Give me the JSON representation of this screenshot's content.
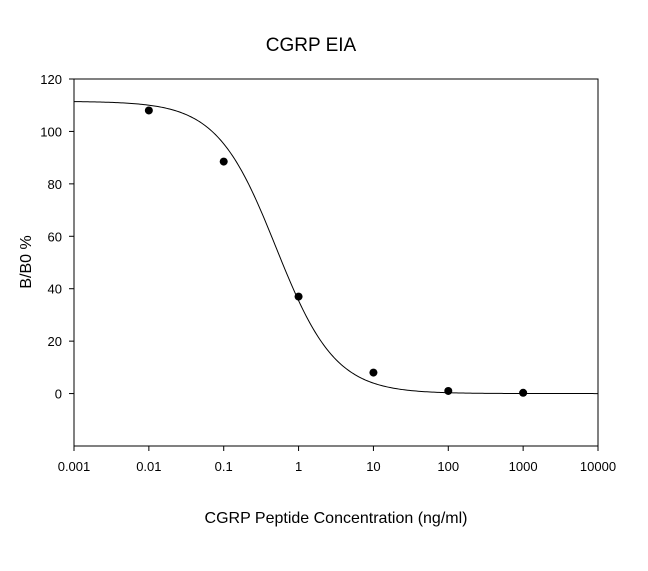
{
  "chart_data": {
    "type": "scatter",
    "title": "CGRP EIA",
    "xlabel": "CGRP Peptide Concentration (ng/ml)",
    "ylabel": "B/B0 %",
    "x_scale": "log",
    "xlim": [
      0.001,
      10000
    ],
    "ylim": [
      -20,
      120
    ],
    "x_ticks": [
      "0.001",
      "0.01",
      "0.1",
      "1",
      "10",
      "100",
      "1000",
      "10000"
    ],
    "y_ticks": [
      "0",
      "20",
      "40",
      "60",
      "80",
      "100",
      "120"
    ],
    "grid": false,
    "series": [
      {
        "points": [
          {
            "x": 0.01,
            "y": 108
          },
          {
            "x": 0.1,
            "y": 88.5
          },
          {
            "x": 1,
            "y": 37
          },
          {
            "x": 10,
            "y": 8
          },
          {
            "x": 100,
            "y": 1
          },
          {
            "x": 1000,
            "y": 0.3
          }
        ],
        "fit_curve": "4-parameter logistic",
        "fit": {
          "top": 111.5,
          "bottom": 0,
          "ec50": 0.5,
          "hill_slope": 1.1
        },
        "color": "#000000"
      }
    ]
  }
}
